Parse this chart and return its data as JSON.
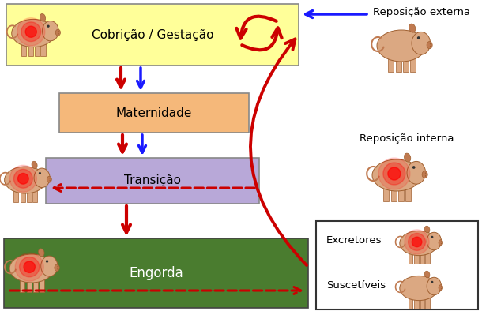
{
  "bg_color": "#ffffff",
  "fig_width": 6.1,
  "fig_height": 3.99,
  "dpi": 100,
  "red": "#cc0000",
  "blue": "#1a1aff",
  "yellow_box": "#ffff99",
  "orange_box": "#f5b87a",
  "purple_box": "#b8a8d8",
  "green_box": "#4a7c2f",
  "pig_body": "#dba882",
  "pig_dark": "#c07a50",
  "pig_outline": "#a06030",
  "box_cobricao_label": "Cobrição / Gestação",
  "box_maternidade_label": "Maternidade",
  "box_transicao_label": "Transição",
  "box_engorda_label": "Engorda",
  "label_rep_externa": "Reposição externa",
  "label_rep_interna": "Reposição interna",
  "label_excretores": "Excretores",
  "label_susceptiveis": "Suscetíveis",
  "lw_arrow": 2.5,
  "lw_arrow_big": 3.0
}
